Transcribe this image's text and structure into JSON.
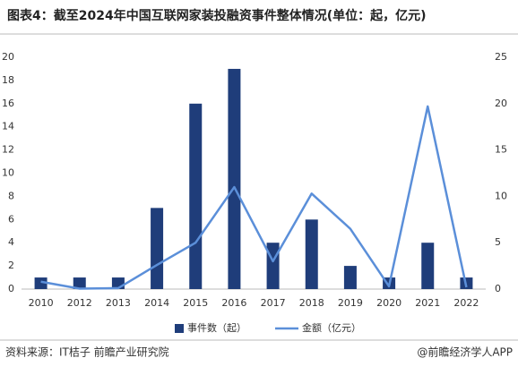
{
  "chart_data": {
    "type": "combo",
    "title": "图表4：截至2024年中国互联网家装投融资事件整体情况(单位：起，亿元)",
    "categories": [
      "2010",
      "2012",
      "2013",
      "2014",
      "2015",
      "2016",
      "2017",
      "2018",
      "2019",
      "2020",
      "2021",
      "2022"
    ],
    "series": [
      {
        "name": "事件数（起）",
        "type": "bar",
        "color": "#1f3d7a",
        "values": [
          1,
          1,
          1,
          7,
          16,
          19,
          4,
          6,
          2,
          1,
          4,
          1
        ]
      },
      {
        "name": "金额（亿元）",
        "type": "line",
        "axis": "y2",
        "color": "#5b8fd9",
        "values": [
          0.8,
          0.05,
          0.1,
          2.6,
          5,
          11,
          3,
          10.3,
          6.5,
          0.3,
          19.7,
          0.2
        ]
      }
    ],
    "ylim": [
      0,
      20
    ],
    "yticks": [
      0,
      2,
      4,
      6,
      8,
      10,
      12,
      14,
      16,
      18,
      20
    ],
    "y2lim": [
      0,
      25
    ],
    "y2ticks": [
      0,
      5,
      10,
      15,
      20,
      25
    ],
    "grid": false,
    "legend": "bottom"
  },
  "footer": {
    "source": "资料来源：IT桔子 前瞻产业研究院",
    "brand": "@前瞻经济学人APP"
  }
}
